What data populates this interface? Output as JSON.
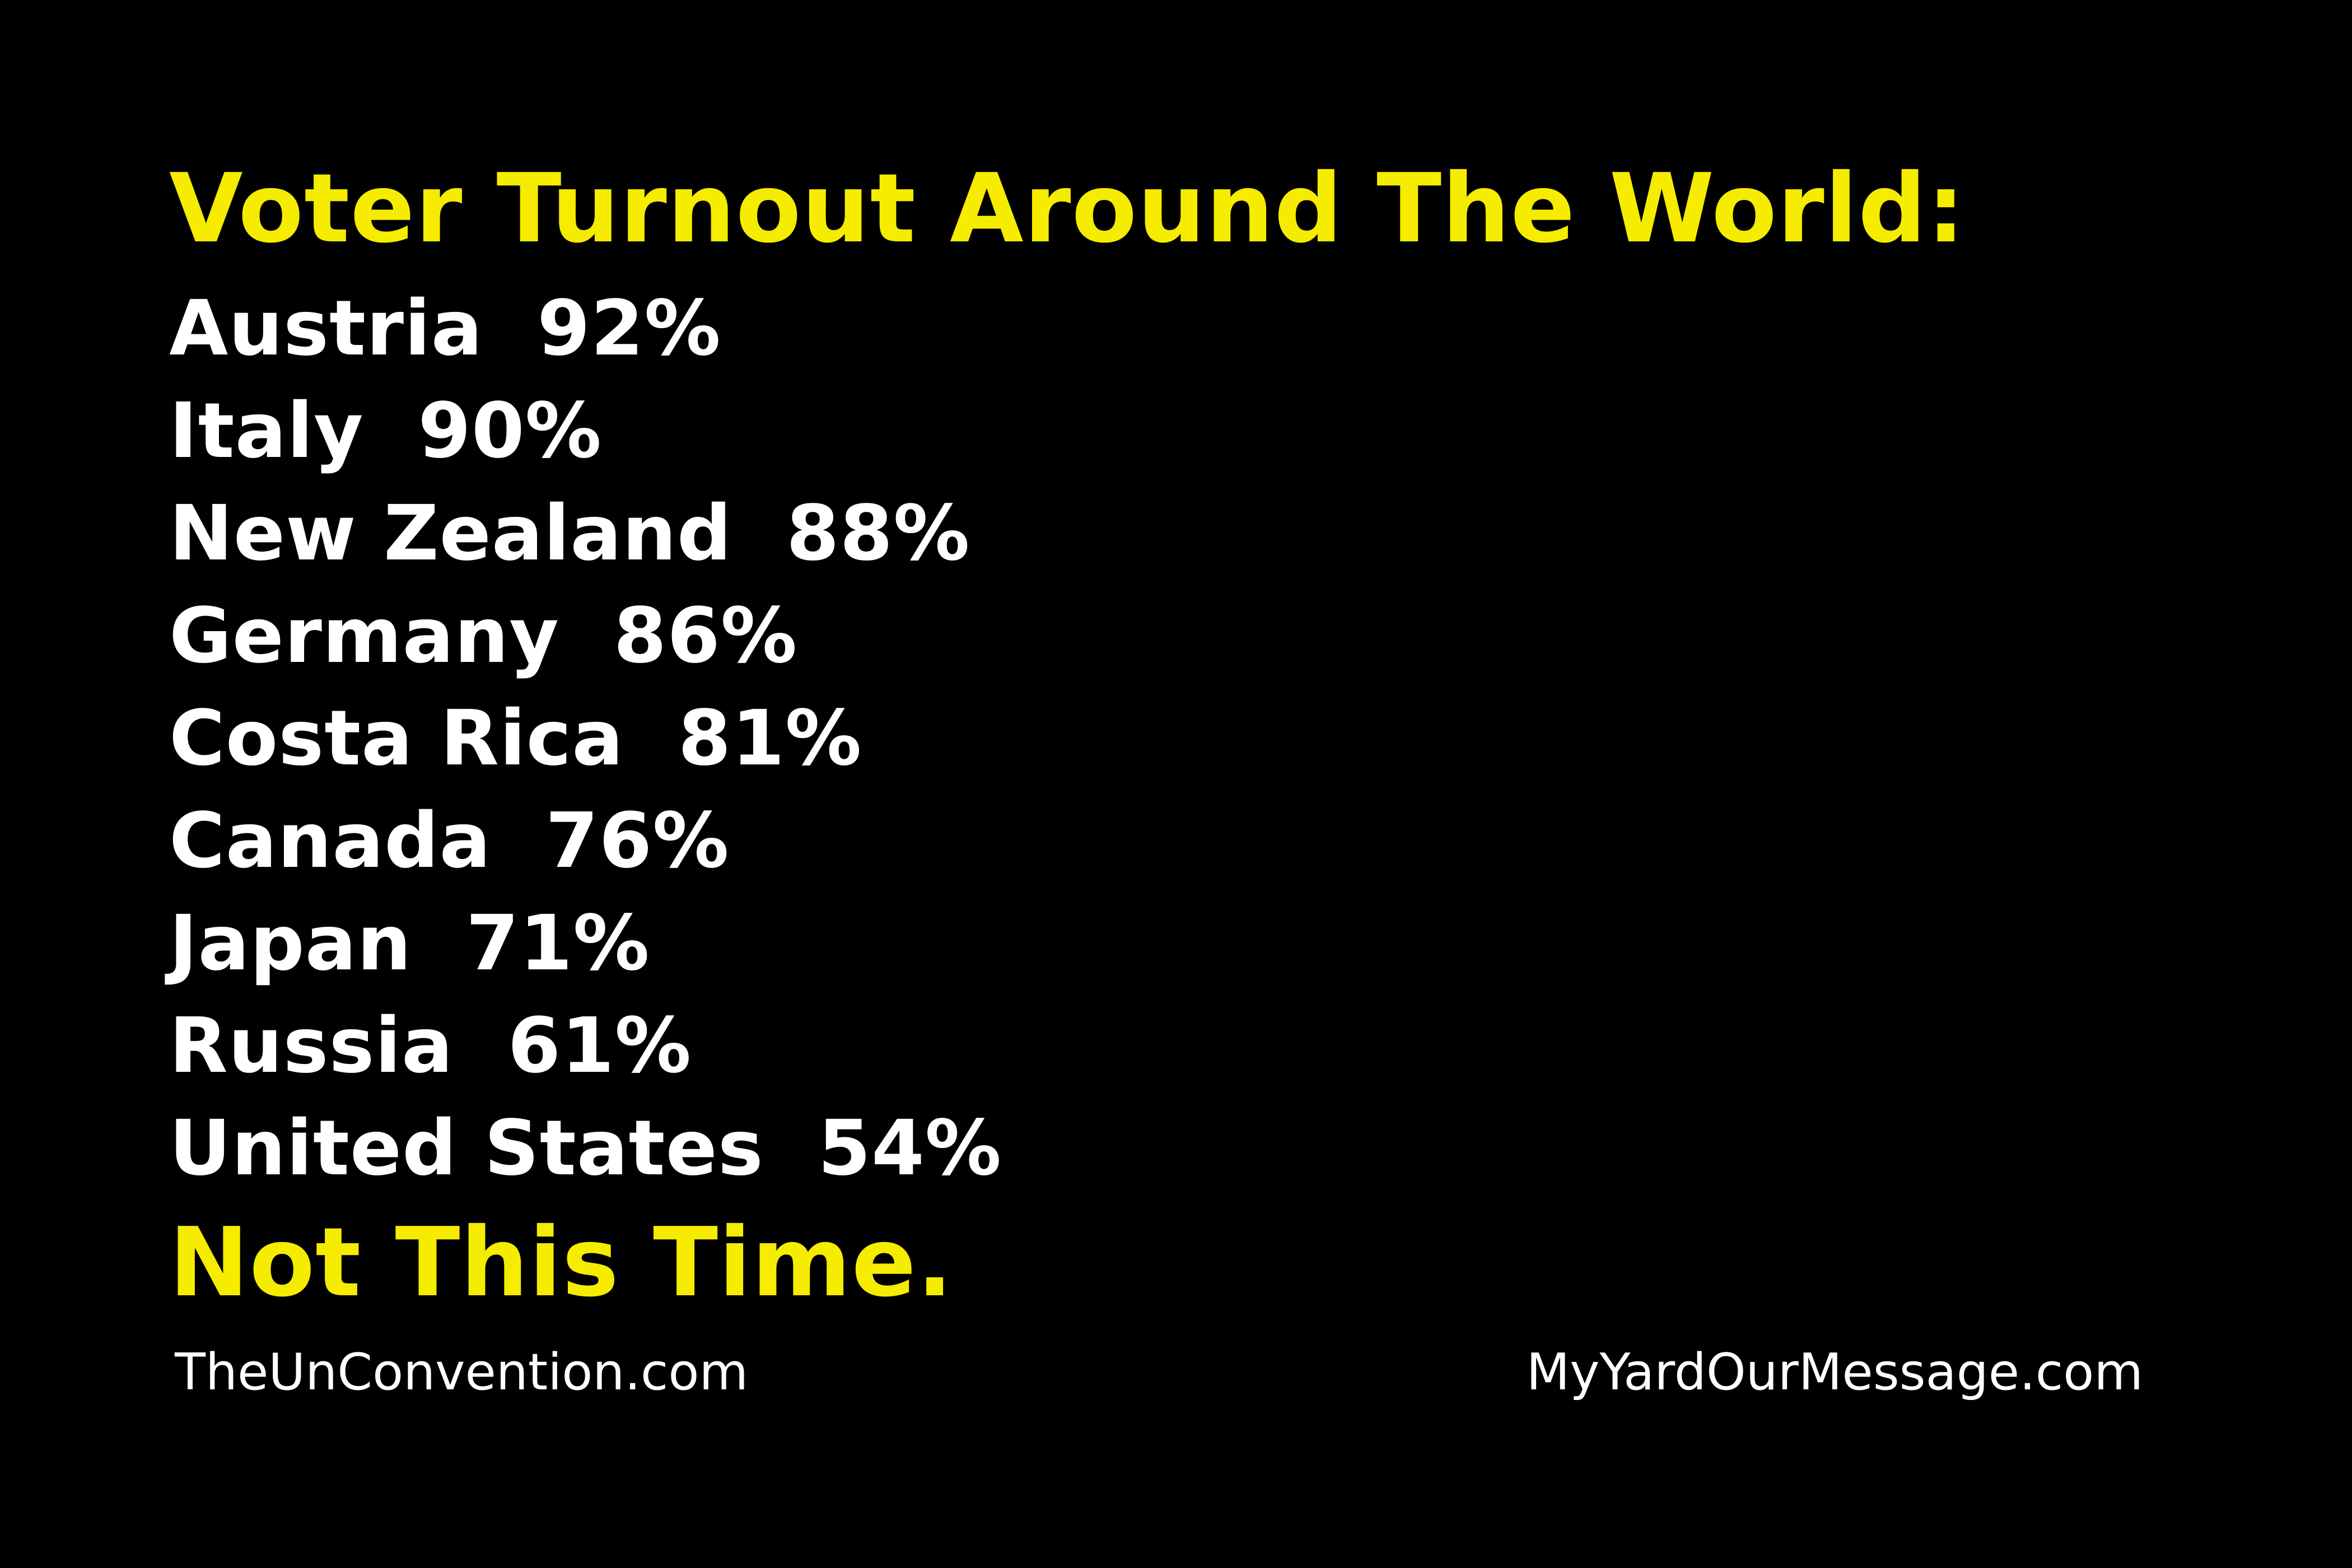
{
  "headline": "Voter Turnout Around The World:",
  "turnout": [
    {
      "country": "Austria",
      "percent": "92%"
    },
    {
      "country": "Italy",
      "percent": "90%"
    },
    {
      "country": "New Zealand",
      "percent": "88%"
    },
    {
      "country": "Germany",
      "percent": "86%"
    },
    {
      "country": "Costa Rica",
      "percent": "81%"
    },
    {
      "country": "Canada",
      "percent": "76%"
    },
    {
      "country": "Japan",
      "percent": "71%"
    },
    {
      "country": "Russia",
      "percent": "61%"
    },
    {
      "country": "United States",
      "percent": "54%"
    }
  ],
  "tagline": "Not This Time.",
  "footer": {
    "left_site": "TheUnConvention.com",
    "right_site": "MyYardOurMessage.com"
  },
  "colors": {
    "background": "#000000",
    "accent": "#f5ec00",
    "text": "#ffffff"
  }
}
